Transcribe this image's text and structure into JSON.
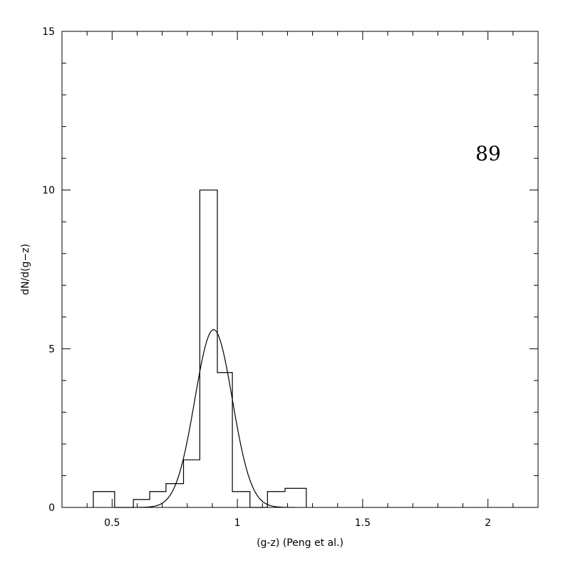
{
  "chart_data": {
    "type": "histogram",
    "xlabel": "(g-z) (Peng et al.)",
    "ylabel": "dN/d(g−z)",
    "annotation": "89",
    "xlim": [
      0.3,
      2.2
    ],
    "ylim": [
      0,
      15
    ],
    "xticks_major": [
      0.5,
      1,
      1.5,
      2
    ],
    "xtick_labels": [
      "0.5",
      "1",
      "1.5",
      "2"
    ],
    "yticks_major": [
      0,
      5,
      10,
      15
    ],
    "ytick_labels": [
      "0",
      "5",
      "10",
      "15"
    ],
    "bins": [
      {
        "x0": 0.425,
        "x1": 0.51,
        "y": 0.5
      },
      {
        "x0": 0.51,
        "x1": 0.585,
        "y": 0
      },
      {
        "x0": 0.585,
        "x1": 0.65,
        "y": 0.25
      },
      {
        "x0": 0.65,
        "x1": 0.715,
        "y": 0.5
      },
      {
        "x0": 0.715,
        "x1": 0.785,
        "y": 0.75
      },
      {
        "x0": 0.785,
        "x1": 0.85,
        "y": 1.5
      },
      {
        "x0": 0.85,
        "x1": 0.92,
        "y": 10
      },
      {
        "x0": 0.92,
        "x1": 0.98,
        "y": 4.25
      },
      {
        "x0": 0.98,
        "x1": 1.05,
        "y": 0.5
      },
      {
        "x0": 1.05,
        "x1": 1.12,
        "y": 0
      },
      {
        "x0": 1.12,
        "x1": 1.19,
        "y": 0.5
      },
      {
        "x0": 1.19,
        "x1": 1.275,
        "y": 0.6
      }
    ],
    "gaussian_fit": {
      "amplitude": 5.6,
      "mean": 0.905,
      "sigma": 0.075
    }
  }
}
